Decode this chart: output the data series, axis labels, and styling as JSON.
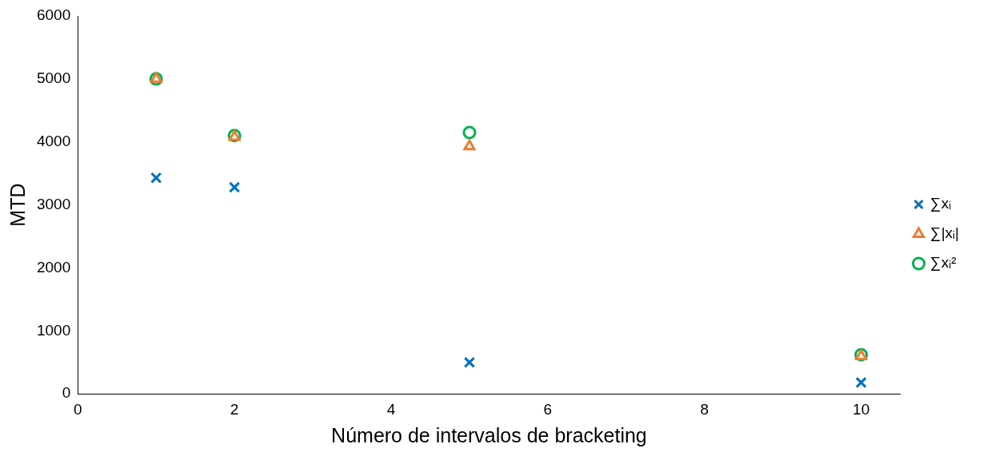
{
  "chart_data": {
    "type": "scatter",
    "xlabel": "Número de intervalos de bracketing",
    "ylabel": "MTD",
    "xlim": [
      0,
      10.5
    ],
    "xticks": [
      0,
      2,
      4,
      6,
      8,
      10
    ],
    "ylim": [
      0,
      6000
    ],
    "yticks": [
      0,
      1000,
      2000,
      3000,
      4000,
      5000,
      6000
    ],
    "grid": false,
    "legend": "right",
    "series": [
      {
        "name": "∑xᵢ",
        "color": "#0070c0",
        "marker": "cross",
        "x": [
          1,
          2,
          5,
          10
        ],
        "values": [
          3430,
          3280,
          500,
          180
        ]
      },
      {
        "name": "∑|xᵢ|",
        "color": "#ed7d31",
        "marker": "triangle",
        "x": [
          1,
          2,
          5,
          10
        ],
        "values": [
          5000,
          4080,
          3930,
          600
        ]
      },
      {
        "name": "∑xᵢ²",
        "color": "#00b050",
        "marker": "circle",
        "x": [
          1,
          2,
          5,
          10
        ],
        "values": [
          5000,
          4100,
          4150,
          620
        ]
      }
    ]
  }
}
